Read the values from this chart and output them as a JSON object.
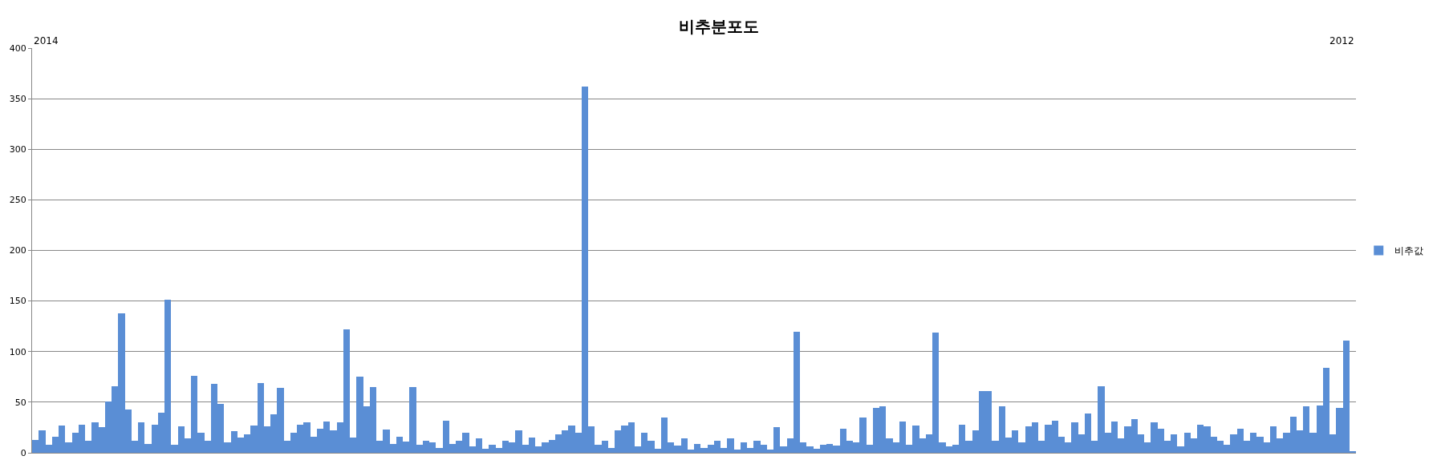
{
  "chart_data": {
    "type": "bar",
    "title": "비추분포도",
    "annotations": [
      "2014",
      "2012"
    ],
    "categories": [
      null,
      null,
      null,
      null,
      null,
      null,
      null,
      null,
      null,
      null,
      null,
      null,
      null,
      null,
      null,
      null,
      null,
      null,
      null,
      null,
      null,
      null,
      null,
      null,
      null,
      null,
      null,
      null,
      null,
      null,
      null,
      null,
      null,
      null,
      null,
      null,
      null,
      null,
      null,
      null,
      null,
      null,
      null,
      null,
      null,
      null,
      null,
      null,
      null,
      null,
      null,
      null,
      null,
      null,
      null,
      null,
      null,
      null,
      null,
      null,
      null,
      null,
      null,
      null,
      null,
      null,
      null,
      null,
      null,
      null,
      null,
      null,
      null,
      null,
      null,
      null,
      null,
      null,
      null,
      null,
      null,
      null,
      null,
      null,
      null,
      null,
      null,
      null,
      null,
      null,
      null,
      null,
      null,
      null,
      null,
      null,
      null,
      null,
      null,
      null,
      null,
      null,
      null,
      null,
      null,
      null,
      null,
      null,
      null,
      null,
      null,
      null,
      null,
      null,
      null,
      null,
      null,
      null,
      null,
      null,
      null,
      null,
      null,
      null,
      null,
      null,
      null,
      null,
      null,
      null,
      null,
      null,
      null,
      null,
      null,
      null,
      null,
      null,
      null,
      null,
      null,
      null,
      null,
      null,
      null,
      null,
      null,
      null,
      null,
      null,
      null,
      null,
      null,
      null,
      null,
      null,
      null,
      null,
      null,
      null,
      null,
      null,
      null,
      null,
      null,
      null,
      null,
      null,
      null,
      null,
      null,
      null,
      null,
      null,
      null,
      null,
      null,
      null,
      null,
      null,
      null,
      null,
      null,
      null,
      null,
      null,
      null,
      null,
      null,
      null,
      null,
      null,
      null,
      null,
      null,
      null,
      null,
      null,
      null,
      null
    ],
    "series": [
      {
        "name": "비추값",
        "color": "#5a8ed5",
        "values": [
          13,
          22,
          8,
          16,
          27,
          10,
          20,
          28,
          12,
          30,
          25,
          51,
          66,
          138,
          43,
          12,
          30,
          9,
          28,
          40,
          151,
          8,
          26,
          14,
          76,
          20,
          12,
          68,
          48,
          10,
          21,
          15,
          18,
          27,
          69,
          26,
          38,
          64,
          12,
          20,
          28,
          30,
          16,
          24,
          31,
          22,
          30,
          122,
          15,
          75,
          46,
          65,
          12,
          23,
          9,
          16,
          11,
          65,
          8,
          12,
          10,
          5,
          32,
          9,
          12,
          20,
          6,
          14,
          4,
          8,
          5,
          12,
          10,
          22,
          8,
          15,
          6,
          10,
          13,
          18,
          22,
          27,
          20,
          362,
          26,
          8,
          12,
          5,
          22,
          27,
          30,
          6,
          20,
          12,
          4,
          35,
          10,
          7,
          14,
          3,
          9,
          5,
          8,
          12,
          5,
          14,
          3,
          10,
          5,
          12,
          8,
          3,
          25,
          6,
          14,
          120,
          10,
          6,
          4,
          8,
          9,
          7,
          24,
          12,
          10,
          35,
          8,
          44,
          46,
          14,
          10,
          31,
          8,
          27,
          14,
          18,
          119,
          10,
          6,
          8,
          28,
          12,
          22,
          61,
          61,
          12,
          46,
          15,
          22,
          10,
          26,
          30,
          12,
          28,
          32,
          16,
          10,
          30,
          18,
          39,
          12,
          66,
          20,
          31,
          14,
          26,
          33,
          18,
          10,
          30,
          24,
          12,
          18,
          6,
          20,
          14,
          28,
          26,
          16,
          12,
          8,
          18,
          24,
          12,
          20,
          16,
          10,
          26,
          14,
          20,
          36,
          22,
          46,
          20,
          47,
          84,
          18,
          44,
          111,
          1
        ]
      }
    ],
    "ylim": [
      0,
      400
    ],
    "yticks": [
      0,
      50,
      100,
      150,
      200,
      250,
      300,
      350,
      400
    ],
    "grid": "y",
    "legend": "right",
    "tick_labels": "y"
  }
}
